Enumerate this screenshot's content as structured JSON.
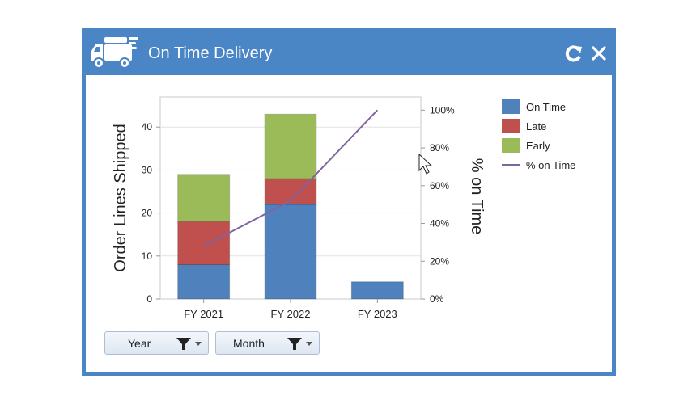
{
  "widget": {
    "title": "On Time Delivery",
    "icons": {
      "logo": "delivery-truck-icon",
      "refresh": "refresh-icon",
      "close": "close-icon"
    },
    "header_color": "#4a86c5"
  },
  "filters": [
    {
      "label": "Year"
    },
    {
      "label": "Month"
    }
  ],
  "chart_data": {
    "type": "bar",
    "stacked": true,
    "categories": [
      "FY 2021",
      "FY 2022",
      "FY 2023"
    ],
    "series": [
      {
        "name": "On Time",
        "values": [
          8,
          22,
          4
        ],
        "color": "#4f81bd"
      },
      {
        "name": "Late",
        "values": [
          10,
          6,
          0
        ],
        "color": "#c0504d"
      },
      {
        "name": "Early",
        "values": [
          11,
          15,
          0
        ],
        "color": "#9bbb59"
      }
    ],
    "line_series": {
      "name": "% on Time",
      "values": [
        28,
        52,
        100
      ],
      "axis": "right",
      "color": "#8064a2"
    },
    "xlabel": "",
    "ylabel": "Order Lines Shipped",
    "y2label": "% on Time",
    "ylim": [
      0,
      47
    ],
    "yticks": [
      "0",
      "10",
      "20",
      "30",
      "40"
    ],
    "y2lim": [
      0,
      107
    ],
    "y2ticks": [
      "0%",
      "20%",
      "40%",
      "60%",
      "80%",
      "100%"
    ],
    "grid": true,
    "legend": "right"
  }
}
